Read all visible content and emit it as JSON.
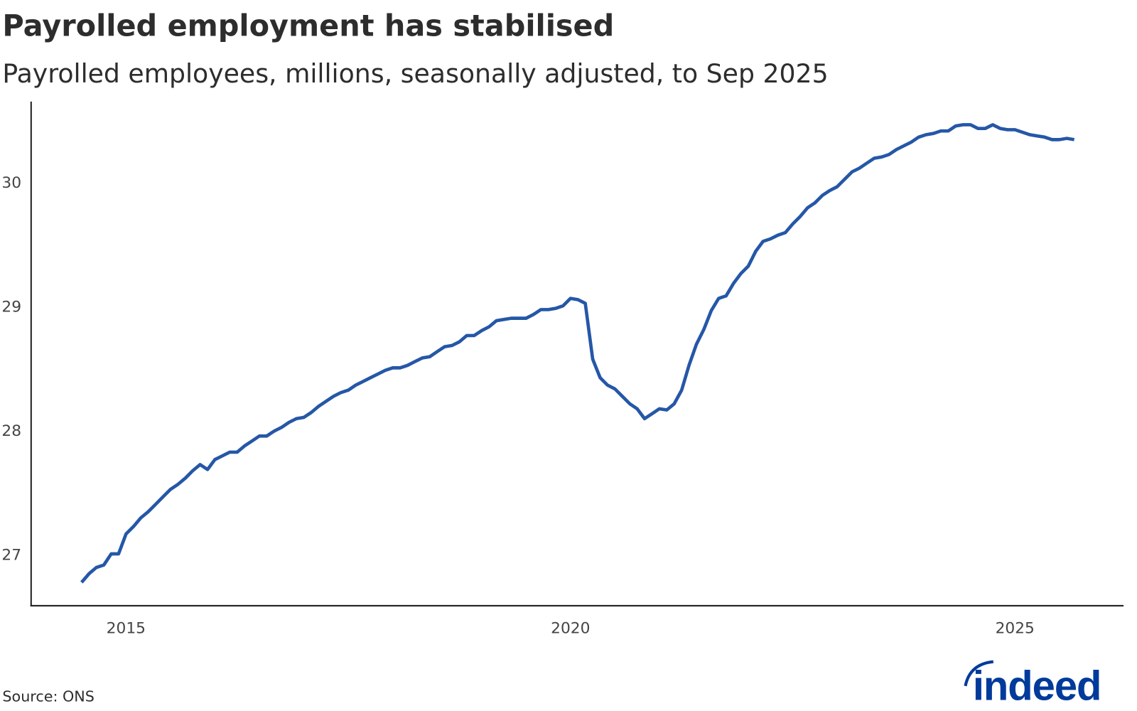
{
  "chart_data": {
    "type": "line",
    "title": "Payrolled employment has stabilised",
    "subtitle": "Payrolled employees, millions, seasonally adjusted, to Sep 2025",
    "xlabel": "",
    "ylabel": "",
    "x_ticks": [
      "2015",
      "2020",
      "2025"
    ],
    "y_ticks": [
      "27",
      "28",
      "29",
      "30"
    ],
    "ylim": [
      26.57,
      30.6
    ],
    "xlim": [
      "2014-01",
      "2026-05"
    ],
    "grid": false,
    "line_color": "#2557a7",
    "x": [
      "2014-07",
      "2014-08",
      "2014-09",
      "2014-10",
      "2014-11",
      "2014-12",
      "2015-01",
      "2015-02",
      "2015-03",
      "2015-04",
      "2015-05",
      "2015-06",
      "2015-07",
      "2015-08",
      "2015-09",
      "2015-10",
      "2015-11",
      "2015-12",
      "2016-01",
      "2016-02",
      "2016-03",
      "2016-04",
      "2016-05",
      "2016-06",
      "2016-07",
      "2016-08",
      "2016-09",
      "2016-10",
      "2016-11",
      "2016-12",
      "2017-01",
      "2017-02",
      "2017-03",
      "2017-04",
      "2017-05",
      "2017-06",
      "2017-07",
      "2017-08",
      "2017-09",
      "2017-10",
      "2017-11",
      "2017-12",
      "2018-01",
      "2018-02",
      "2018-03",
      "2018-04",
      "2018-05",
      "2018-06",
      "2018-07",
      "2018-08",
      "2018-09",
      "2018-10",
      "2018-11",
      "2018-12",
      "2019-01",
      "2019-02",
      "2019-03",
      "2019-04",
      "2019-05",
      "2019-06",
      "2019-07",
      "2019-08",
      "2019-09",
      "2019-10",
      "2019-11",
      "2019-12",
      "2020-01",
      "2020-02",
      "2020-03",
      "2020-04",
      "2020-05",
      "2020-06",
      "2020-07",
      "2020-08",
      "2020-09",
      "2020-10",
      "2020-11",
      "2020-12",
      "2021-01",
      "2021-02",
      "2021-03",
      "2021-04",
      "2021-05",
      "2021-06",
      "2021-07",
      "2021-08",
      "2021-09",
      "2021-10",
      "2021-11",
      "2021-12",
      "2022-01",
      "2022-02",
      "2022-03",
      "2022-04",
      "2022-05",
      "2022-06",
      "2022-07",
      "2022-08",
      "2022-09",
      "2022-10",
      "2022-11",
      "2022-12",
      "2023-01",
      "2023-02",
      "2023-03",
      "2023-04",
      "2023-05",
      "2023-06",
      "2023-07",
      "2023-08",
      "2023-09",
      "2023-10",
      "2023-11",
      "2023-12",
      "2024-01",
      "2024-02",
      "2024-03",
      "2024-04",
      "2024-05",
      "2024-06",
      "2024-07",
      "2024-08",
      "2024-09",
      "2024-10",
      "2024-11",
      "2024-12",
      "2025-01",
      "2025-02",
      "2025-03",
      "2025-04",
      "2025-05",
      "2025-06",
      "2025-07",
      "2025-08",
      "2025-09"
    ],
    "series": [
      {
        "values": [
          26.77,
          26.84,
          26.89,
          26.91,
          27.0,
          27.0,
          27.16,
          27.22,
          27.29,
          27.34,
          27.4,
          27.46,
          27.52,
          27.56,
          27.61,
          27.67,
          27.72,
          27.68,
          27.76,
          27.79,
          27.82,
          27.82,
          27.87,
          27.91,
          27.95,
          27.95,
          27.99,
          28.02,
          28.06,
          28.09,
          28.1,
          28.14,
          28.19,
          28.23,
          28.27,
          28.3,
          28.32,
          28.36,
          28.39,
          28.42,
          28.45,
          28.48,
          28.5,
          28.5,
          28.52,
          28.55,
          28.58,
          28.59,
          28.63,
          28.67,
          28.68,
          28.71,
          28.76,
          28.76,
          28.8,
          28.83,
          28.88,
          28.89,
          28.9,
          28.9,
          28.9,
          28.93,
          28.97,
          28.97,
          28.98,
          29.0,
          29.06,
          29.05,
          29.02,
          28.57,
          28.42,
          28.36,
          28.33,
          28.27,
          28.21,
          28.17,
          28.09,
          28.13,
          28.17,
          28.16,
          28.21,
          28.32,
          28.52,
          28.69,
          28.81,
          28.96,
          29.06,
          29.08,
          29.18,
          29.26,
          29.32,
          29.44,
          29.52,
          29.54,
          29.57,
          29.59,
          29.66,
          29.72,
          29.79,
          29.83,
          29.89,
          29.93,
          29.96,
          30.02,
          30.08,
          30.11,
          30.15,
          30.19,
          30.2,
          30.22,
          30.26,
          30.29,
          30.32,
          30.36,
          30.38,
          30.39,
          30.41,
          30.41,
          30.45,
          30.46,
          30.46,
          30.43,
          30.43,
          30.46,
          30.43,
          30.42,
          30.42,
          30.4,
          30.38,
          30.37,
          30.36,
          30.34,
          30.34,
          30.35,
          30.34
        ]
      }
    ]
  },
  "source": "Source: ONS",
  "logo": {
    "text": "indeed",
    "color": "#003a9b"
  }
}
